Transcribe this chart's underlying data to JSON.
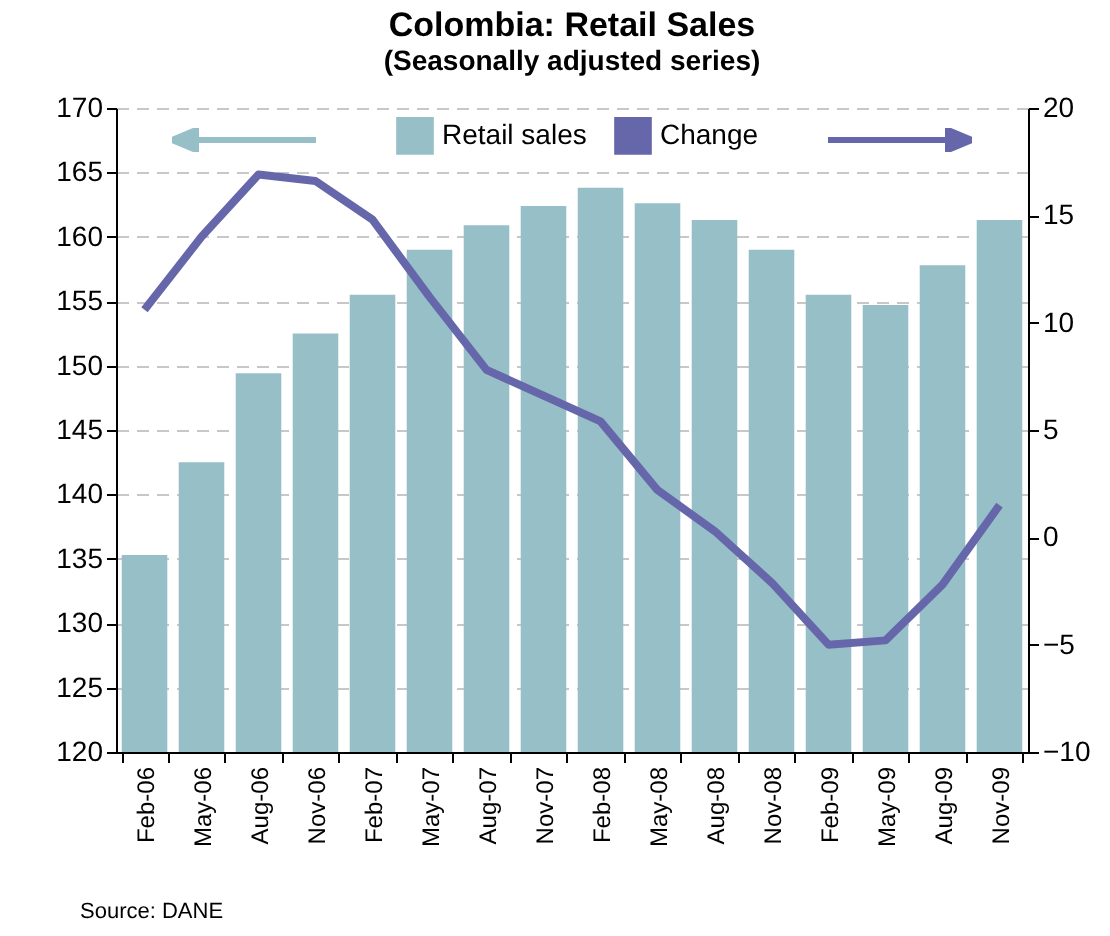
{
  "chart_data": {
    "type": "bar",
    "title": "Colombia: Retail Sales",
    "subtitle": "(Seasonally adjusted series)",
    "categories": [
      "Feb-06",
      "May-06",
      "Aug-06",
      "Nov-06",
      "Feb-07",
      "May-07",
      "Aug-07",
      "Nov-07",
      "Feb-08",
      "May-08",
      "Aug-08",
      "Nov-08",
      "Feb-09",
      "May-09",
      "Aug-09",
      "Nov-09"
    ],
    "series": [
      {
        "name": "Retail sales",
        "color": "#97bfc8",
        "values": [
          135.3,
          142.5,
          149.4,
          152.5,
          155.5,
          159.0,
          160.9,
          162.4,
          163.8,
          162.6,
          161.3,
          159.0,
          155.5,
          154.7,
          157.8,
          161.3
        ]
      },
      {
        "name": "Change",
        "type": "line",
        "axis": "y2",
        "color": "#6667ab",
        "values": [
          10.6,
          14.0,
          16.9,
          16.6,
          14.8,
          11.2,
          7.8,
          6.6,
          5.4,
          2.2,
          0.3,
          -2.1,
          -5.0,
          -4.8,
          -2.2,
          1.5
        ]
      }
    ],
    "ylim": [
      120,
      170
    ],
    "yticks": [
      120,
      125,
      130,
      135,
      140,
      145,
      150,
      155,
      160,
      165,
      170
    ],
    "y2lim": [
      -10,
      20
    ],
    "y2ticks": [
      -10,
      -5,
      0,
      5,
      10,
      15,
      20
    ],
    "grid": "y",
    "legend": "top",
    "line_style": "solid",
    "marker": "none",
    "annotations": [
      "Source: DANE"
    ]
  }
}
